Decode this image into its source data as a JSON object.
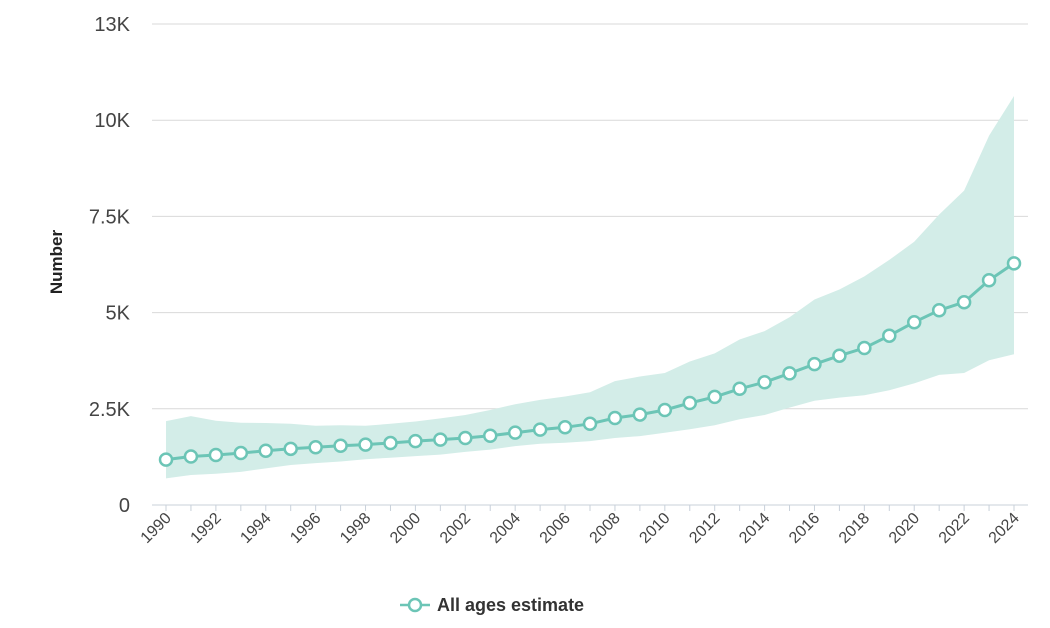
{
  "chart_data": {
    "type": "line",
    "title": "",
    "xlabel": "",
    "ylabel": "Number",
    "x": [
      1990,
      1991,
      1992,
      1993,
      1994,
      1995,
      1996,
      1997,
      1998,
      1999,
      2000,
      2001,
      2002,
      2003,
      2004,
      2005,
      2006,
      2007,
      2008,
      2009,
      2010,
      2011,
      2012,
      2013,
      2014,
      2015,
      2016,
      2017,
      2018,
      2019,
      2020,
      2021,
      2022,
      2023,
      2024
    ],
    "x_tick_labels": [
      "1990",
      "1992",
      "1994",
      "1996",
      "1998",
      "2000",
      "2002",
      "2004",
      "2006",
      "2008",
      "2010",
      "2012",
      "2014",
      "2016",
      "2018",
      "2020",
      "2022",
      "2024"
    ],
    "y_ticks": [
      0,
      2500,
      5000,
      7500,
      10000,
      12500
    ],
    "y_tick_labels": [
      "0",
      "2.5K",
      "5K",
      "7.5K",
      "10K",
      "13K"
    ],
    "ylim": [
      0,
      12500
    ],
    "series": [
      {
        "name": "All ages estimate",
        "values": [
          1180,
          1260,
          1300,
          1350,
          1410,
          1460,
          1500,
          1540,
          1570,
          1610,
          1660,
          1700,
          1740,
          1800,
          1880,
          1960,
          2020,
          2110,
          2260,
          2350,
          2470,
          2650,
          2810,
          3020,
          3190,
          3420,
          3660,
          3880,
          4080,
          4400,
          4750,
          5060,
          5270,
          5840,
          6280
        ],
        "lower": [
          690,
          780,
          810,
          860,
          950,
          1040,
          1090,
          1130,
          1190,
          1230,
          1270,
          1310,
          1380,
          1440,
          1530,
          1590,
          1620,
          1660,
          1740,
          1790,
          1880,
          1970,
          2070,
          2230,
          2340,
          2530,
          2710,
          2790,
          2850,
          2980,
          3160,
          3380,
          3430,
          3760,
          3920
        ],
        "upper": [
          2180,
          2310,
          2190,
          2140,
          2130,
          2110,
          2060,
          2070,
          2060,
          2110,
          2170,
          2250,
          2340,
          2470,
          2620,
          2730,
          2820,
          2930,
          3220,
          3340,
          3430,
          3730,
          3940,
          4300,
          4520,
          4880,
          5340,
          5600,
          5940,
          6370,
          6840,
          7550,
          8170,
          9600,
          10630
        ],
        "color": "#6cc5b6",
        "band_color": "#d3ede8"
      }
    ],
    "grid": true,
    "legend": "bottom-center"
  }
}
